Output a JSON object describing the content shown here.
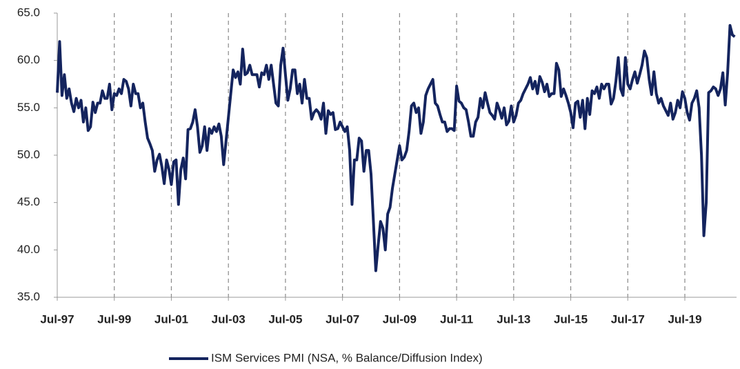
{
  "chart_data": {
    "type": "line",
    "categories": [
      "Jul-97",
      null,
      null,
      null,
      null,
      null,
      null,
      null,
      null,
      null,
      null,
      null,
      null,
      null,
      null,
      null,
      null,
      null,
      null,
      null,
      null,
      null,
      null,
      null,
      "Jul-99",
      null,
      null,
      null,
      null,
      null,
      null,
      null,
      null,
      null,
      null,
      null,
      null,
      null,
      null,
      null,
      null,
      null,
      null,
      null,
      null,
      null,
      null,
      null,
      "Jul-01",
      null,
      null,
      null,
      null,
      null,
      null,
      null,
      null,
      null,
      null,
      null,
      null,
      null,
      null,
      null,
      null,
      null,
      null,
      null,
      null,
      null,
      null,
      null,
      "Jul-03",
      null,
      null,
      null,
      null,
      null,
      null,
      null,
      null,
      null,
      null,
      null,
      null,
      null,
      null,
      null,
      null,
      null,
      null,
      null,
      null,
      null,
      null,
      null,
      "Jul-05",
      null,
      null,
      null,
      null,
      null,
      null,
      null,
      null,
      null,
      null,
      null,
      null,
      null,
      null,
      null,
      null,
      null,
      null,
      null,
      null,
      null,
      null,
      null,
      "Jul-07",
      null,
      null,
      null,
      null,
      null,
      null,
      null,
      null,
      null,
      null,
      null,
      null,
      null,
      null,
      null,
      null,
      null,
      null,
      null,
      null,
      null,
      null,
      null,
      "Jul-09",
      null,
      null,
      null,
      null,
      null,
      null,
      null,
      null,
      null,
      null,
      null,
      null,
      null,
      null,
      null,
      null,
      null,
      null,
      null,
      null,
      null,
      null,
      null,
      "Jul-11",
      null,
      null,
      null,
      null,
      null,
      null,
      null,
      null,
      null,
      null,
      null,
      null,
      null,
      null,
      null,
      null,
      null,
      null,
      null,
      null,
      null,
      null,
      null,
      "Jul-13",
      null,
      null,
      null,
      null,
      null,
      null,
      null,
      null,
      null,
      null,
      null,
      null,
      null,
      null,
      null,
      null,
      null,
      null,
      null,
      null,
      null,
      null,
      null,
      "Jul-15",
      null,
      null,
      null,
      null,
      null,
      null,
      null,
      null,
      null,
      null,
      null,
      null,
      null,
      null,
      null,
      null,
      null,
      null,
      null,
      null,
      null,
      null,
      null,
      "Jul-17",
      null,
      null,
      null,
      null,
      null,
      null,
      null,
      null,
      null,
      null,
      null,
      null,
      null,
      null,
      null,
      null,
      null,
      null,
      null,
      null,
      null,
      null,
      null,
      "Jul-19",
      null,
      null,
      null,
      null,
      null,
      null,
      null,
      null,
      null,
      null,
      null,
      null,
      null,
      null,
      null,
      null,
      null,
      null,
      null,
      null,
      null
    ],
    "series": [
      {
        "name": "ISM Services PMI (NSA, % Balance/Diffusion Index)",
        "color": "#14245e",
        "values": [
          56.6,
          62,
          56.3,
          58.5,
          56,
          57,
          55.5,
          54.6,
          56,
          55,
          55.8,
          53.5,
          55,
          52.6,
          53,
          55.6,
          54.5,
          55.5,
          55.5,
          56.8,
          56,
          56,
          57.5,
          54.8,
          56.5,
          56.3,
          57,
          56.5,
          58,
          57.8,
          57,
          55.2,
          57.5,
          56.5,
          56.5,
          55,
          55.5,
          53.5,
          51.8,
          51.2,
          50.5,
          48.3,
          49.5,
          50.1,
          48.8,
          47,
          49.5,
          48.5,
          46.9,
          49.3,
          49.5,
          44.8,
          48.5,
          49.7,
          47.5,
          52.7,
          52.8,
          53.5,
          54.8,
          53,
          50.3,
          51,
          53,
          50.5,
          52.8,
          52.3,
          53,
          52.5,
          53.3,
          52,
          49,
          51.5,
          54,
          56.5,
          59,
          58.2,
          58.8,
          57.5,
          61.2,
          58.5,
          58.7,
          59.5,
          58.5,
          58.5,
          58.5,
          57.2,
          58.7,
          58.5,
          59.5,
          58,
          59.5,
          57.5,
          55.5,
          55.2,
          59.5,
          61.3,
          58.5,
          55.8,
          57,
          59,
          59,
          56.5,
          57.5,
          55.5,
          58,
          56,
          56,
          53.8,
          54.5,
          54.8,
          54.5,
          53.8,
          55.5,
          52.3,
          54.7,
          54.3,
          54.5,
          52.7,
          52.8,
          53.5,
          53,
          52.5,
          53,
          50.5,
          44.8,
          49.5,
          49.5,
          51.8,
          51.5,
          48.3,
          50.5,
          50.5,
          48,
          43,
          37.8,
          40.5,
          43,
          42.3,
          40,
          43.8,
          44.5,
          46.5,
          48,
          49.5,
          51,
          49.5,
          49.8,
          50.5,
          52.5,
          55.2,
          55.5,
          54.5,
          55,
          52.3,
          53.5,
          56.3,
          57,
          57.5,
          58,
          55.5,
          55.2,
          54.3,
          53.5,
          53.5,
          52.5,
          52.8,
          52.8,
          52.6,
          57.3,
          55.7,
          55.5,
          55,
          54.8,
          53.5,
          52,
          52,
          53.5,
          54,
          56,
          55,
          56.6,
          55.5,
          54.5,
          54.2,
          53.8,
          55.5,
          54.8,
          53.9,
          55,
          53.2,
          53.6,
          55.2,
          53.5,
          54.2,
          55.5,
          55.8,
          56.5,
          57,
          57.5,
          58.2,
          57,
          57.8,
          56.5,
          58.3,
          57.7,
          56.7,
          57.5,
          56.2,
          56.5,
          56.5,
          59.7,
          59,
          56.2,
          57,
          56.3,
          55.5,
          54.5,
          52.9,
          55.5,
          55.7,
          54,
          55.8,
          52.8,
          56,
          54.3,
          56.8,
          56.5,
          57.2,
          56,
          57.5,
          57,
          57.5,
          57.5,
          55.4,
          56,
          57.8,
          60.3,
          57,
          56.3,
          60.3,
          57.5,
          57,
          58,
          58.8,
          57.6,
          58.5,
          59.5,
          61,
          60.3,
          58,
          56.4,
          58.8,
          56.5,
          55.5,
          56,
          55.2,
          54.7,
          54.2,
          55.5,
          53.8,
          54.5,
          55.8,
          55,
          56.7,
          56,
          54.5,
          53.7,
          55.5,
          56,
          56.8,
          55,
          50,
          41.5,
          45,
          56.6,
          56.8,
          57.2,
          57,
          56.3,
          57,
          58.7,
          55.3,
          58.7,
          63.7,
          62.7,
          62.5
        ]
      }
    ],
    "ylim": [
      35,
      65
    ],
    "yticks": [
      {
        "value": 35,
        "label": "35.0"
      },
      {
        "value": 40,
        "label": "40.0"
      },
      {
        "value": 45,
        "label": "45.0"
      },
      {
        "value": 50,
        "label": "50.0"
      },
      {
        "value": 55,
        "label": "55.0"
      },
      {
        "value": 60,
        "label": "60.0"
      },
      {
        "value": 65,
        "label": "65.0"
      }
    ],
    "grid": "x-dashed",
    "legend": "bottom"
  }
}
